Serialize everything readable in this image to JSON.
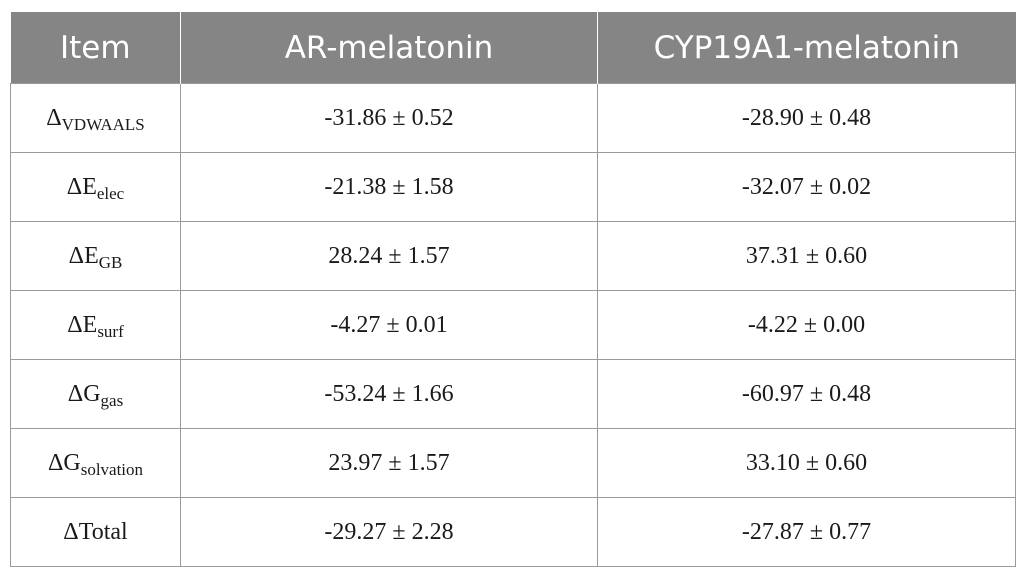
{
  "header": {
    "col_item": "Item",
    "col_ar": "AR-melatonin",
    "col_cyp": "CYP19A1-melatonin"
  },
  "rows": [
    {
      "item": {
        "base": "Δ",
        "sub": "VDWAALS"
      },
      "ar": "-31.86 ± 0.52",
      "cyp": "-28.90 ± 0.48"
    },
    {
      "item": {
        "base": "ΔE",
        "sub": "elec"
      },
      "ar": "-21.38 ± 1.58",
      "cyp": "-32.07 ± 0.02"
    },
    {
      "item": {
        "base": "ΔE",
        "sub": "GB"
      },
      "ar": "28.24 ± 1.57",
      "cyp": "37.31 ± 0.60"
    },
    {
      "item": {
        "base": "ΔE",
        "sub": "surf"
      },
      "ar": "-4.27 ± 0.01",
      "cyp": "-4.22 ± 0.00"
    },
    {
      "item": {
        "base": "ΔG",
        "sub": "gas"
      },
      "ar": "-53.24 ± 1.66",
      "cyp": "-60.97 ± 0.48"
    },
    {
      "item": {
        "base": "ΔG",
        "sub": "solvation"
      },
      "ar": "23.97 ± 1.57",
      "cyp": "33.10 ± 0.60"
    },
    {
      "item": {
        "base": "ΔTotal",
        "sub": ""
      },
      "ar": "-29.27 ± 2.28",
      "cyp": "-27.87 ± 0.77"
    }
  ]
}
